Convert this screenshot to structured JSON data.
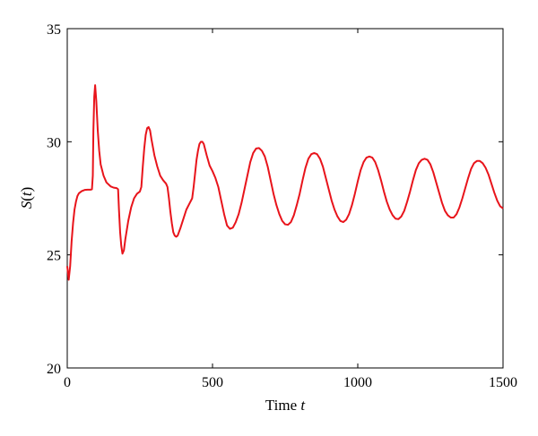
{
  "chart_data": {
    "type": "line",
    "xlabel": "Time t",
    "xlabel_parts": {
      "text": "Time ",
      "var": "t"
    },
    "ylabel": "S(t)",
    "ylabel_parts": {
      "pre": "S(",
      "var": "t",
      "post": ")"
    },
    "xlim": [
      0,
      1500
    ],
    "ylim": [
      20,
      35
    ],
    "x_ticks": [
      0,
      500,
      1000,
      1500
    ],
    "y_ticks": [
      20,
      25,
      30,
      35
    ],
    "grid": false,
    "line_color": "#e8141b",
    "series": [
      {
        "points": [
          [
            0,
            24.5
          ],
          [
            5,
            23.9
          ],
          [
            10,
            24.5
          ],
          [
            15,
            25.6
          ],
          [
            20,
            26.4
          ],
          [
            25,
            27.0
          ],
          [
            30,
            27.35
          ],
          [
            35,
            27.6
          ],
          [
            40,
            27.72
          ],
          [
            50,
            27.82
          ],
          [
            60,
            27.87
          ],
          [
            70,
            27.88
          ],
          [
            80,
            27.88
          ],
          [
            85,
            27.9
          ],
          [
            88,
            28.5
          ],
          [
            90,
            30.5
          ],
          [
            93,
            32.0
          ],
          [
            96,
            32.5
          ],
          [
            100,
            31.8
          ],
          [
            105,
            30.5
          ],
          [
            110,
            29.6
          ],
          [
            115,
            29.0
          ],
          [
            125,
            28.5
          ],
          [
            135,
            28.2
          ],
          [
            150,
            28.02
          ],
          [
            160,
            27.97
          ],
          [
            170,
            27.95
          ],
          [
            175,
            27.9
          ],
          [
            178,
            27.0
          ],
          [
            182,
            26.0
          ],
          [
            186,
            25.4
          ],
          [
            190,
            25.05
          ],
          [
            195,
            25.2
          ],
          [
            200,
            25.7
          ],
          [
            210,
            26.5
          ],
          [
            220,
            27.1
          ],
          [
            230,
            27.5
          ],
          [
            240,
            27.7
          ],
          [
            250,
            27.8
          ],
          [
            255,
            28.0
          ],
          [
            260,
            28.9
          ],
          [
            265,
            29.7
          ],
          [
            270,
            30.3
          ],
          [
            275,
            30.6
          ],
          [
            280,
            30.65
          ],
          [
            285,
            30.5
          ],
          [
            290,
            30.1
          ],
          [
            300,
            29.4
          ],
          [
            310,
            28.9
          ],
          [
            320,
            28.5
          ],
          [
            330,
            28.3
          ],
          [
            340,
            28.15
          ],
          [
            345,
            28.0
          ],
          [
            350,
            27.5
          ],
          [
            355,
            26.9
          ],
          [
            360,
            26.4
          ],
          [
            365,
            26.0
          ],
          [
            370,
            25.85
          ],
          [
            375,
            25.8
          ],
          [
            380,
            25.85
          ],
          [
            390,
            26.2
          ],
          [
            400,
            26.6
          ],
          [
            410,
            27.0
          ],
          [
            420,
            27.25
          ],
          [
            430,
            27.5
          ],
          [
            435,
            28.0
          ],
          [
            440,
            28.6
          ],
          [
            445,
            29.2
          ],
          [
            450,
            29.6
          ],
          [
            455,
            29.9
          ],
          [
            460,
            30.0
          ],
          [
            465,
            30.0
          ],
          [
            470,
            29.9
          ],
          [
            480,
            29.4
          ],
          [
            490,
            28.95
          ],
          [
            500,
            28.7
          ],
          [
            510,
            28.4
          ],
          [
            520,
            28.0
          ],
          [
            530,
            27.4
          ],
          [
            540,
            26.8
          ],
          [
            550,
            26.3
          ],
          [
            560,
            26.15
          ],
          [
            570,
            26.2
          ],
          [
            580,
            26.45
          ],
          [
            590,
            26.8
          ],
          [
            600,
            27.3
          ],
          [
            610,
            27.9
          ],
          [
            620,
            28.5
          ],
          [
            630,
            29.1
          ],
          [
            640,
            29.5
          ],
          [
            650,
            29.7
          ],
          [
            660,
            29.72
          ],
          [
            670,
            29.6
          ],
          [
            680,
            29.35
          ],
          [
            690,
            28.9
          ],
          [
            700,
            28.3
          ],
          [
            710,
            27.7
          ],
          [
            720,
            27.2
          ],
          [
            730,
            26.8
          ],
          [
            740,
            26.5
          ],
          [
            750,
            26.35
          ],
          [
            760,
            26.33
          ],
          [
            770,
            26.45
          ],
          [
            780,
            26.75
          ],
          [
            790,
            27.2
          ],
          [
            800,
            27.7
          ],
          [
            810,
            28.3
          ],
          [
            820,
            28.85
          ],
          [
            830,
            29.25
          ],
          [
            840,
            29.45
          ],
          [
            850,
            29.5
          ],
          [
            860,
            29.45
          ],
          [
            870,
            29.25
          ],
          [
            880,
            28.9
          ],
          [
            890,
            28.4
          ],
          [
            900,
            27.9
          ],
          [
            910,
            27.4
          ],
          [
            920,
            27.0
          ],
          [
            930,
            26.7
          ],
          [
            940,
            26.5
          ],
          [
            950,
            26.45
          ],
          [
            960,
            26.55
          ],
          [
            970,
            26.8
          ],
          [
            980,
            27.2
          ],
          [
            990,
            27.7
          ],
          [
            1000,
            28.25
          ],
          [
            1010,
            28.75
          ],
          [
            1020,
            29.1
          ],
          [
            1030,
            29.3
          ],
          [
            1040,
            29.35
          ],
          [
            1050,
            29.3
          ],
          [
            1060,
            29.1
          ],
          [
            1070,
            28.75
          ],
          [
            1080,
            28.3
          ],
          [
            1090,
            27.8
          ],
          [
            1100,
            27.35
          ],
          [
            1110,
            27.0
          ],
          [
            1120,
            26.75
          ],
          [
            1130,
            26.6
          ],
          [
            1140,
            26.58
          ],
          [
            1150,
            26.7
          ],
          [
            1160,
            26.95
          ],
          [
            1170,
            27.35
          ],
          [
            1180,
            27.8
          ],
          [
            1190,
            28.3
          ],
          [
            1200,
            28.75
          ],
          [
            1210,
            29.05
          ],
          [
            1220,
            29.2
          ],
          [
            1230,
            29.25
          ],
          [
            1240,
            29.2
          ],
          [
            1250,
            29.0
          ],
          [
            1260,
            28.65
          ],
          [
            1270,
            28.2
          ],
          [
            1280,
            27.75
          ],
          [
            1290,
            27.3
          ],
          [
            1300,
            26.95
          ],
          [
            1310,
            26.75
          ],
          [
            1320,
            26.65
          ],
          [
            1330,
            26.65
          ],
          [
            1340,
            26.8
          ],
          [
            1350,
            27.1
          ],
          [
            1360,
            27.5
          ],
          [
            1370,
            27.95
          ],
          [
            1380,
            28.4
          ],
          [
            1390,
            28.8
          ],
          [
            1400,
            29.05
          ],
          [
            1410,
            29.15
          ],
          [
            1420,
            29.15
          ],
          [
            1430,
            29.05
          ],
          [
            1440,
            28.85
          ],
          [
            1450,
            28.55
          ],
          [
            1460,
            28.15
          ],
          [
            1470,
            27.75
          ],
          [
            1480,
            27.4
          ],
          [
            1490,
            27.15
          ],
          [
            1500,
            27.05
          ]
        ]
      }
    ]
  }
}
